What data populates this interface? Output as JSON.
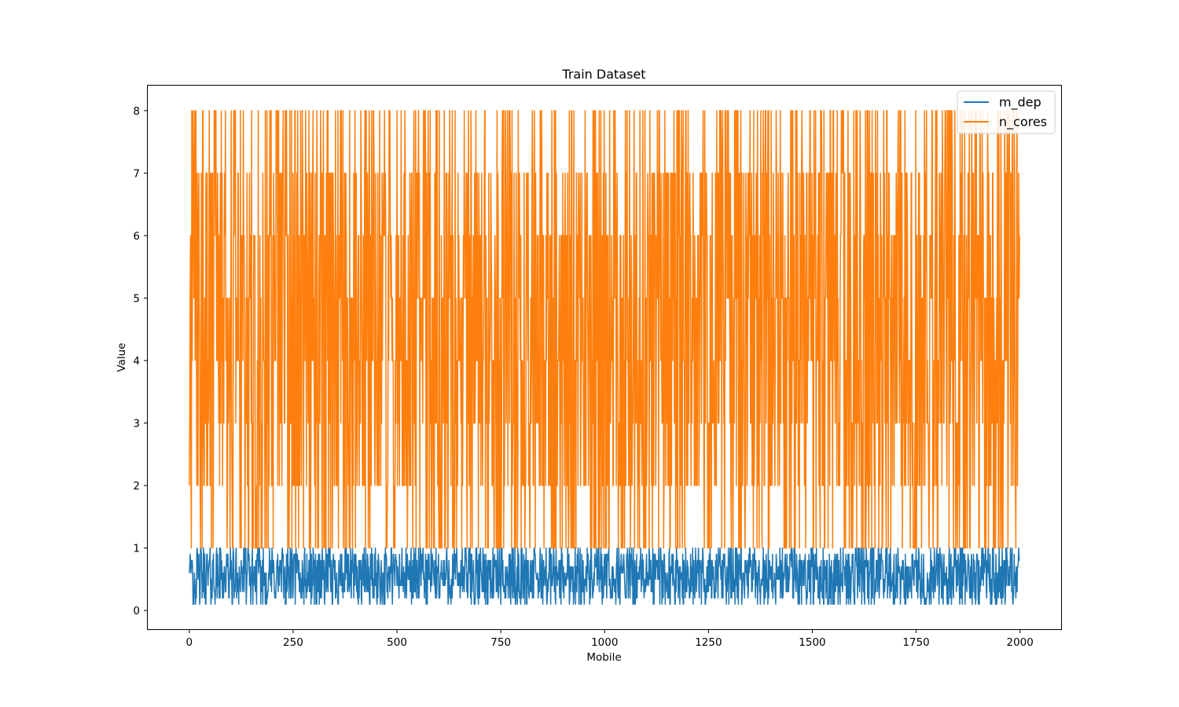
{
  "chart_data": {
    "type": "line",
    "title": "Train Dataset",
    "xlabel": "Mobile",
    "ylabel": "Value",
    "xlim": [
      -100,
      2099
    ],
    "ylim": [
      -0.3,
      8.4
    ],
    "x_ticks": [
      0,
      250,
      500,
      750,
      1000,
      1250,
      1500,
      1750,
      2000
    ],
    "y_ticks": [
      0,
      1,
      2,
      3,
      4,
      5,
      6,
      7,
      8
    ],
    "grid": false,
    "legend_position": "upper-right",
    "n_points": 2000,
    "series": [
      {
        "name": "m_dep",
        "color": "#1f77b4",
        "min": 0.1,
        "max": 1.0,
        "step": 0.1,
        "first_values": [
          0.6,
          0.7,
          0.9,
          0.8,
          0.6,
          0.7,
          0.8,
          0.8,
          0.7,
          0.1
        ],
        "last_value": 0.8
      },
      {
        "name": "n_cores",
        "color": "#ff7f0e",
        "min": 1,
        "max": 8,
        "step": 1,
        "first_values": [
          2,
          3,
          5,
          6,
          2,
          1,
          8,
          4,
          7,
          8
        ],
        "last_value": 6
      }
    ]
  }
}
